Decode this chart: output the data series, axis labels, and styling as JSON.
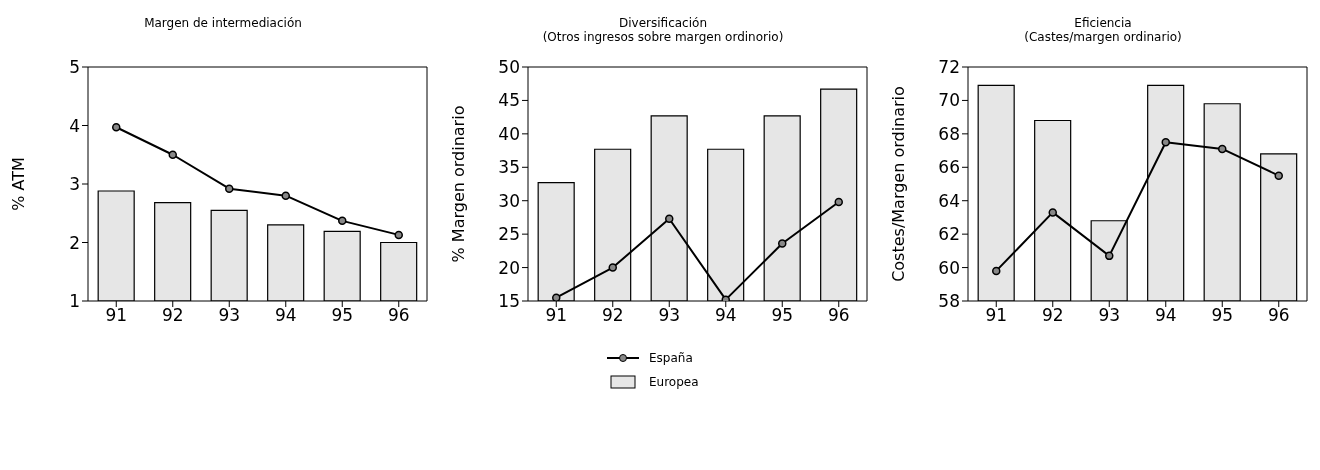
{
  "chart_data": [
    {
      "type": "bar",
      "title": "Margen de intermediación",
      "ylabel": "% ATM",
      "categories": [
        "91",
        "92",
        "93",
        "94",
        "95",
        "96"
      ],
      "ylim": [
        1,
        5
      ],
      "yticks": [
        1,
        2,
        3,
        4,
        5
      ],
      "marker": "circle",
      "legend": false,
      "series": [
        {
          "color": "#e6e6e6",
          "values": [
            2.88,
            2.68,
            2.55,
            2.3,
            2.19,
            2.0
          ]
        },
        {
          "type": "line",
          "color": "#000000",
          "values": [
            3.97,
            3.5,
            2.92,
            2.8,
            2.37,
            2.13
          ]
        }
      ]
    },
    {
      "type": "bar",
      "title": "Diversificación",
      "subtitle": "(Otros ingresos sobre margen ordinorio)",
      "ylabel": "% Margen ordinario",
      "categories": [
        "91",
        "92",
        "93",
        "94",
        "95",
        "96"
      ],
      "ylim": [
        15,
        50
      ],
      "yticks": [
        15,
        20,
        25,
        30,
        35,
        40,
        45,
        50
      ],
      "marker": "circle",
      "legend": "bottom",
      "series": [
        {
          "name": "Europea",
          "color": "#e6e6e6",
          "values": [
            32.7,
            37.7,
            42.7,
            37.7,
            42.7,
            46.7
          ]
        },
        {
          "name": "España",
          "type": "line",
          "color": "#000000",
          "values": [
            15.5,
            20.0,
            27.3,
            15.2,
            23.6,
            29.8
          ]
        }
      ]
    },
    {
      "type": "bar",
      "title": "Eficiencia",
      "subtitle": "(Castes/margen ordinario)",
      "ylabel": "Costes/Margen ordinario",
      "categories": [
        "91",
        "92",
        "93",
        "94",
        "95",
        "96"
      ],
      "ylim": [
        58,
        72
      ],
      "yticks": [
        58,
        60,
        62,
        64,
        66,
        68,
        70,
        72
      ],
      "marker": "circle",
      "legend": false,
      "series": [
        {
          "color": "#e6e6e6",
          "values": [
            70.9,
            68.8,
            62.8,
            70.9,
            69.8,
            66.8
          ]
        },
        {
          "type": "line",
          "color": "#000000",
          "values": [
            59.8,
            63.3,
            60.7,
            67.5,
            67.1,
            65.5
          ]
        }
      ]
    }
  ]
}
